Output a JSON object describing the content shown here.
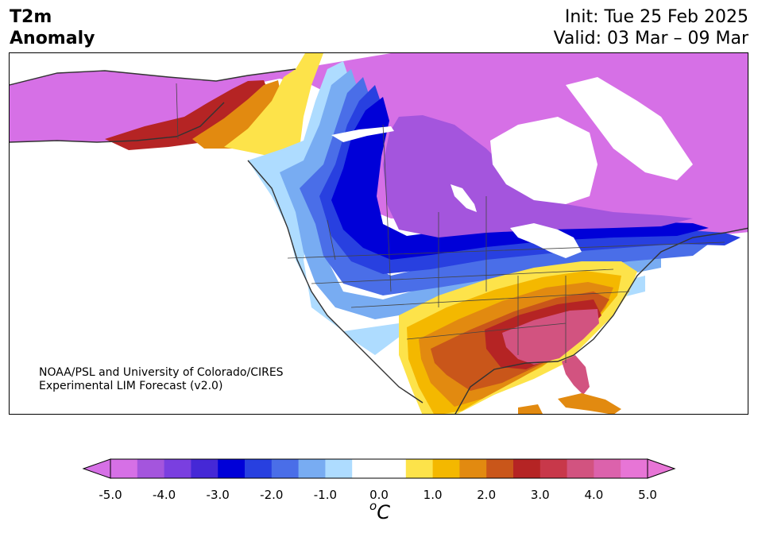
{
  "header": {
    "title_line1": "T2m",
    "title_line2": "Anomaly",
    "init": "Init: Tue 25 Feb 2025",
    "valid": "Valid: 03 Mar – 09 Mar"
  },
  "credit": {
    "line1": "NOAA/PSL and University of Colorado/CIRES",
    "line2": "Experimental LIM Forecast (v2.0)"
  },
  "colorbar": {
    "ticks": [
      "-5.0",
      "-4.0",
      "-3.0",
      "-2.0",
      "-1.0",
      "0.0",
      "1.0",
      "2.0",
      "3.0",
      "4.0",
      "5.0"
    ],
    "unit_sup": "o",
    "unit": "C",
    "colors": [
      "#d670e6",
      "#a455dd",
      "#7a3fe0",
      "#4528d6",
      "#0000d8",
      "#2840e0",
      "#4a6ee8",
      "#78acf2",
      "#aedcff",
      "#ffffff",
      "#ffffff",
      "#fde34a",
      "#f4b800",
      "#e28a10",
      "#c9561a",
      "#b52424",
      "#c8384a",
      "#d25380",
      "#dc62ac",
      "#e775d6"
    ]
  },
  "map_colors": {
    "strong_cold": "#d670e6",
    "cold_mid": "#a455dd",
    "deep_blue": "#0000d8",
    "blue": "#2840e0",
    "mid_blue": "#4a6ee8",
    "light_blue": "#78acf2",
    "pale_blue": "#aedcff",
    "yellow": "#fde34a",
    "gold": "#f4b800",
    "orange": "#e28a10",
    "dark_orange": "#c9561a",
    "red": "#b52424",
    "rose": "#c8384a",
    "pink": "#d25380",
    "hot_pink": "#dc62ac"
  }
}
